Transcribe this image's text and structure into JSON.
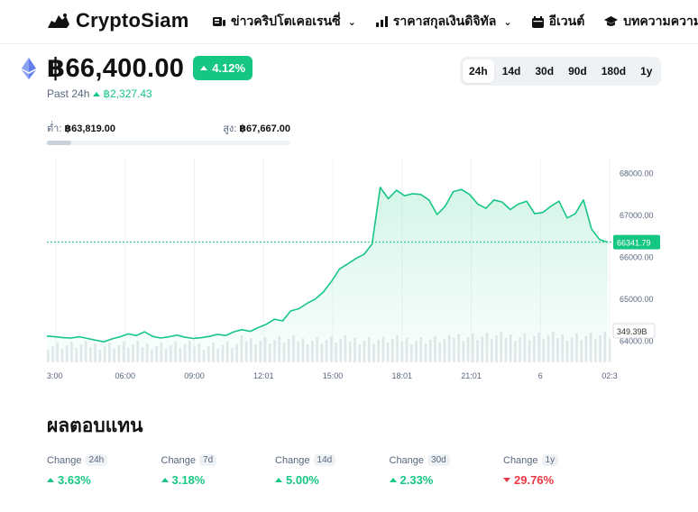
{
  "brand": {
    "name": "CryptoSiam"
  },
  "nav": {
    "items": [
      {
        "label": "ข่าวคริปโตเคอเรนซี่",
        "icon": "news-icon",
        "has_dropdown": true
      },
      {
        "label": "ราคาสกุลเงินดิจิทัล",
        "icon": "bar-chart-icon",
        "has_dropdown": true
      },
      {
        "label": "อีเวนต์",
        "icon": "calendar-icon",
        "has_dropdown": false
      },
      {
        "label": "บทความความรู้",
        "icon": "graduation-cap-icon",
        "has_dropdown": false
      }
    ]
  },
  "coin": {
    "icon": "ethereum-icon",
    "price": "฿66,400.00",
    "change_pct": "4.12%",
    "past_label": "Past 24h",
    "past_change": "฿2,327.43",
    "low_label": "ต่ำ:",
    "low_value": "฿63,819.00",
    "high_label": "สูง:",
    "high_value": "฿67,667.00",
    "range_fill": 0.1
  },
  "range_tabs": [
    {
      "label": "24h",
      "active": true
    },
    {
      "label": "14d",
      "active": false
    },
    {
      "label": "30d",
      "active": false
    },
    {
      "label": "90d",
      "active": false
    },
    {
      "label": "180d",
      "active": false
    },
    {
      "label": "1y",
      "active": false
    }
  ],
  "chart_data": {
    "type": "area",
    "x_ticks": [
      "3:00",
      "06:00",
      "09:00",
      "12:01",
      "15:00",
      "18:01",
      "21:01",
      "6",
      "02:3"
    ],
    "y_ticks": [
      "68000.00",
      "67000.00",
      "66000.00",
      "65000.00",
      "64000.00"
    ],
    "current_value_label": "66341.79",
    "volume_label": "349.39B",
    "reference_line": 66341.79,
    "ylim": [
      63900,
      68250
    ],
    "values": [
      64100,
      64080,
      64060,
      64050,
      64080,
      64040,
      64000,
      63960,
      64030,
      64080,
      64150,
      64110,
      64200,
      64090,
      64050,
      64080,
      64120,
      64070,
      64040,
      64060,
      64090,
      64140,
      64110,
      64200,
      64250,
      64210,
      64300,
      64380,
      64500,
      64460,
      64700,
      64750,
      64880,
      64980,
      65150,
      65400,
      65700,
      65820,
      65950,
      66050,
      66300,
      67650,
      67380,
      67580,
      67450,
      67500,
      67480,
      67350,
      67000,
      67200,
      67550,
      67600,
      67480,
      67250,
      67150,
      67350,
      67300,
      67120,
      67250,
      67320,
      67020,
      67050,
      67200,
      67320,
      66920,
      67020,
      67350,
      66650,
      66400,
      66341.79
    ]
  },
  "results": {
    "title": "ผลตอบแทน",
    "items": [
      {
        "label": "Change",
        "period": "24h",
        "value": "3.63%",
        "direction": "up"
      },
      {
        "label": "Change",
        "period": "7d",
        "value": "3.18%",
        "direction": "up"
      },
      {
        "label": "Change",
        "period": "14d",
        "value": "5.00%",
        "direction": "up"
      },
      {
        "label": "Change",
        "period": "30d",
        "value": "2.33%",
        "direction": "up"
      },
      {
        "label": "Change",
        "period": "1y",
        "value": "29.76%",
        "direction": "down"
      }
    ]
  },
  "colors": {
    "accent": "#16c784",
    "negative": "#ea3943",
    "muted": "#58667e"
  }
}
